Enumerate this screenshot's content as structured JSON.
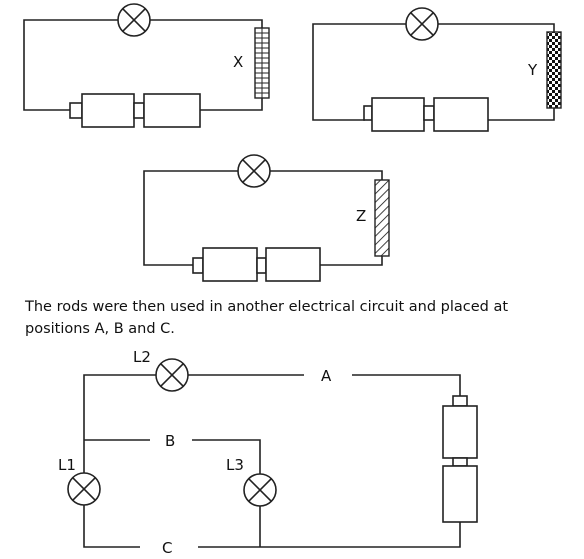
{
  "circuit_x": {
    "rod_label": "X"
  },
  "circuit_y": {
    "rod_label": "Y"
  },
  "circuit_z": {
    "rod_label": "Z"
  },
  "caption": "The rods were then used in another electrical circuit and placed at positions A, B and C.",
  "circuit_main": {
    "positions": {
      "a": "A",
      "b": "B",
      "c": "C"
    },
    "lamps": {
      "l1": "L1",
      "l2": "L2",
      "l3": "L3"
    }
  }
}
